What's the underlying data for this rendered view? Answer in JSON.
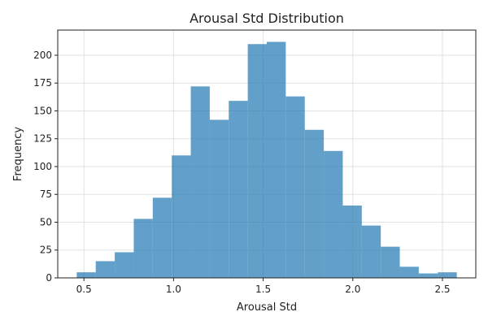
{
  "chart_data": {
    "type": "bar",
    "title": "Arousal Std Distribution",
    "xlabel": "Arousal Std",
    "ylabel": "Frequency",
    "bin_edges": [
      0.46,
      0.566,
      0.672,
      0.778,
      0.884,
      0.99,
      1.096,
      1.202,
      1.308,
      1.414,
      1.52,
      1.626,
      1.732,
      1.838,
      1.944,
      2.05,
      2.156,
      2.262,
      2.368,
      2.474,
      2.58
    ],
    "values": [
      5,
      15,
      23,
      53,
      72,
      110,
      172,
      142,
      159,
      210,
      212,
      163,
      133,
      114,
      65,
      47,
      28,
      10,
      4,
      5
    ],
    "xlim": [
      0.354,
      2.686
    ],
    "ylim": [
      0,
      222.6
    ],
    "xticks": [
      0.5,
      1.0,
      1.5,
      2.0,
      2.5
    ],
    "xtick_labels": [
      "0.5",
      "1.0",
      "1.5",
      "2.0",
      "2.5"
    ],
    "yticks": [
      0,
      25,
      50,
      75,
      100,
      125,
      150,
      175,
      200
    ],
    "ytick_labels": [
      "0",
      "25",
      "50",
      "75",
      "100",
      "125",
      "150",
      "175",
      "200"
    ],
    "grid": true,
    "bar_color": "#1f77b4",
    "bar_opacity": 0.7
  }
}
